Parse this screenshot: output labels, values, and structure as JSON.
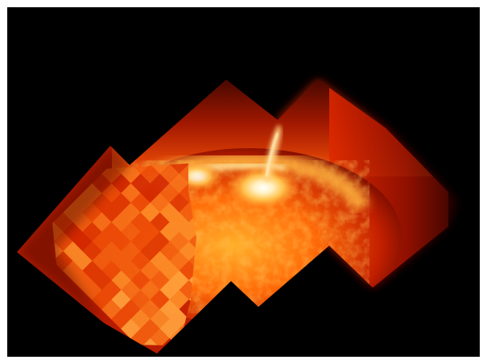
{
  "image": {
    "subject": "solar-flare-mosaic",
    "background_color": "#000000",
    "frame_color": "#ffffff",
    "palette": {
      "hot_core": "#fff6d8",
      "bright": "#ffd36a",
      "mid": "#ff8a1e",
      "low": "#d42a00",
      "dark": "#4a0600"
    }
  }
}
